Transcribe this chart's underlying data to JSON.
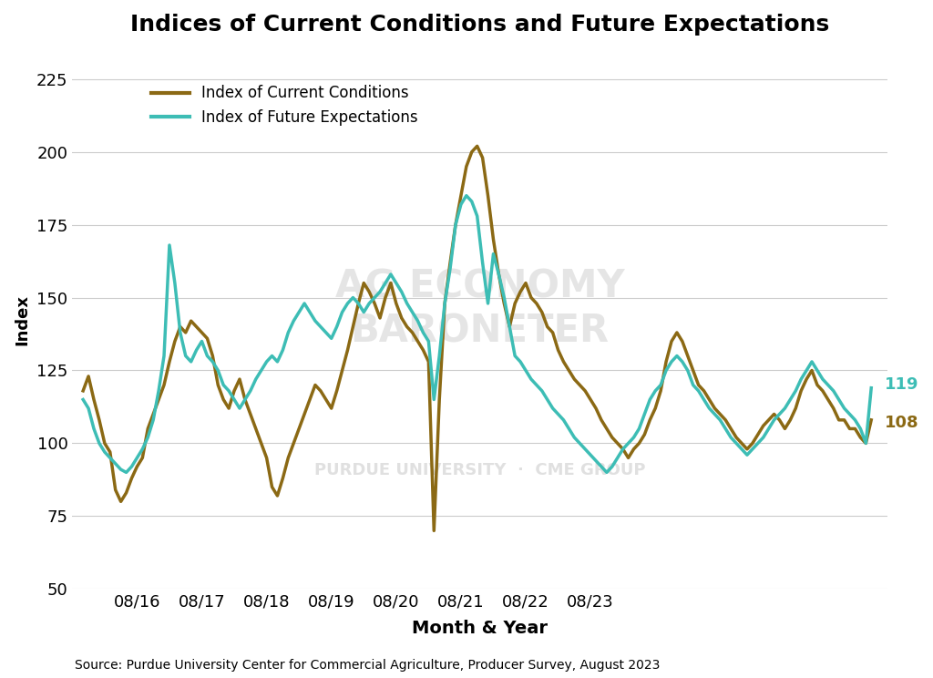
{
  "title": "Indices of Current Conditions and Future Expectations",
  "xlabel": "Month & Year",
  "ylabel": "Index",
  "source": "Source: Purdue University Center for Commercial Agriculture, Producer Survey, August 2023",
  "ylim": [
    50,
    235
  ],
  "yticks": [
    50,
    75,
    100,
    125,
    150,
    175,
    200,
    225
  ],
  "xtick_labels": [
    "08/16",
    "08/17",
    "08/18",
    "08/19",
    "08/20",
    "08/21",
    "08/22",
    "08/23"
  ],
  "color_current": "#8B6914",
  "color_future": "#3DBDB5",
  "end_label_current": "108",
  "end_label_future": "119",
  "current_conditions": [
    118,
    123,
    115,
    108,
    100,
    97,
    84,
    80,
    83,
    88,
    92,
    95,
    105,
    110,
    115,
    120,
    128,
    135,
    140,
    138,
    142,
    140,
    138,
    136,
    130,
    120,
    115,
    112,
    118,
    122,
    115,
    110,
    105,
    100,
    95,
    85,
    82,
    88,
    95,
    100,
    105,
    110,
    115,
    120,
    118,
    115,
    112,
    118,
    125,
    132,
    140,
    148,
    155,
    152,
    148,
    143,
    150,
    155,
    148,
    143,
    140,
    138,
    135,
    132,
    128,
    70,
    115,
    148,
    162,
    175,
    185,
    195,
    200,
    202,
    198,
    185,
    170,
    158,
    148,
    140,
    148,
    152,
    155,
    150,
    148,
    145,
    140,
    138,
    132,
    128,
    125,
    122,
    120,
    118,
    115,
    112,
    108,
    105,
    102,
    100,
    98,
    95,
    98,
    100,
    103,
    108,
    112,
    118,
    128,
    135,
    138,
    135,
    130,
    125,
    120,
    118,
    115,
    112,
    110,
    108,
    105,
    102,
    100,
    98,
    100,
    103,
    106,
    108,
    110,
    108,
    105,
    108,
    112,
    118,
    122,
    125,
    120,
    118,
    115,
    112,
    108,
    108,
    105,
    105,
    102,
    100,
    108
  ],
  "future_expectations": [
    115,
    112,
    105,
    100,
    97,
    95,
    93,
    91,
    90,
    92,
    95,
    98,
    102,
    108,
    118,
    130,
    168,
    155,
    138,
    130,
    128,
    132,
    135,
    130,
    128,
    125,
    120,
    118,
    115,
    112,
    115,
    118,
    122,
    125,
    128,
    130,
    128,
    132,
    138,
    142,
    145,
    148,
    145,
    142,
    140,
    138,
    136,
    140,
    145,
    148,
    150,
    148,
    145,
    148,
    150,
    152,
    155,
    158,
    155,
    152,
    148,
    145,
    142,
    138,
    135,
    115,
    130,
    148,
    160,
    175,
    182,
    185,
    183,
    178,
    162,
    148,
    165,
    158,
    150,
    140,
    130,
    128,
    125,
    122,
    120,
    118,
    115,
    112,
    110,
    108,
    105,
    102,
    100,
    98,
    96,
    94,
    92,
    90,
    92,
    95,
    98,
    100,
    102,
    105,
    110,
    115,
    118,
    120,
    125,
    128,
    130,
    128,
    125,
    120,
    118,
    115,
    112,
    110,
    108,
    105,
    102,
    100,
    98,
    96,
    98,
    100,
    102,
    105,
    108,
    110,
    112,
    115,
    118,
    122,
    125,
    128,
    125,
    122,
    120,
    118,
    115,
    112,
    110,
    108,
    105,
    100,
    119
  ]
}
